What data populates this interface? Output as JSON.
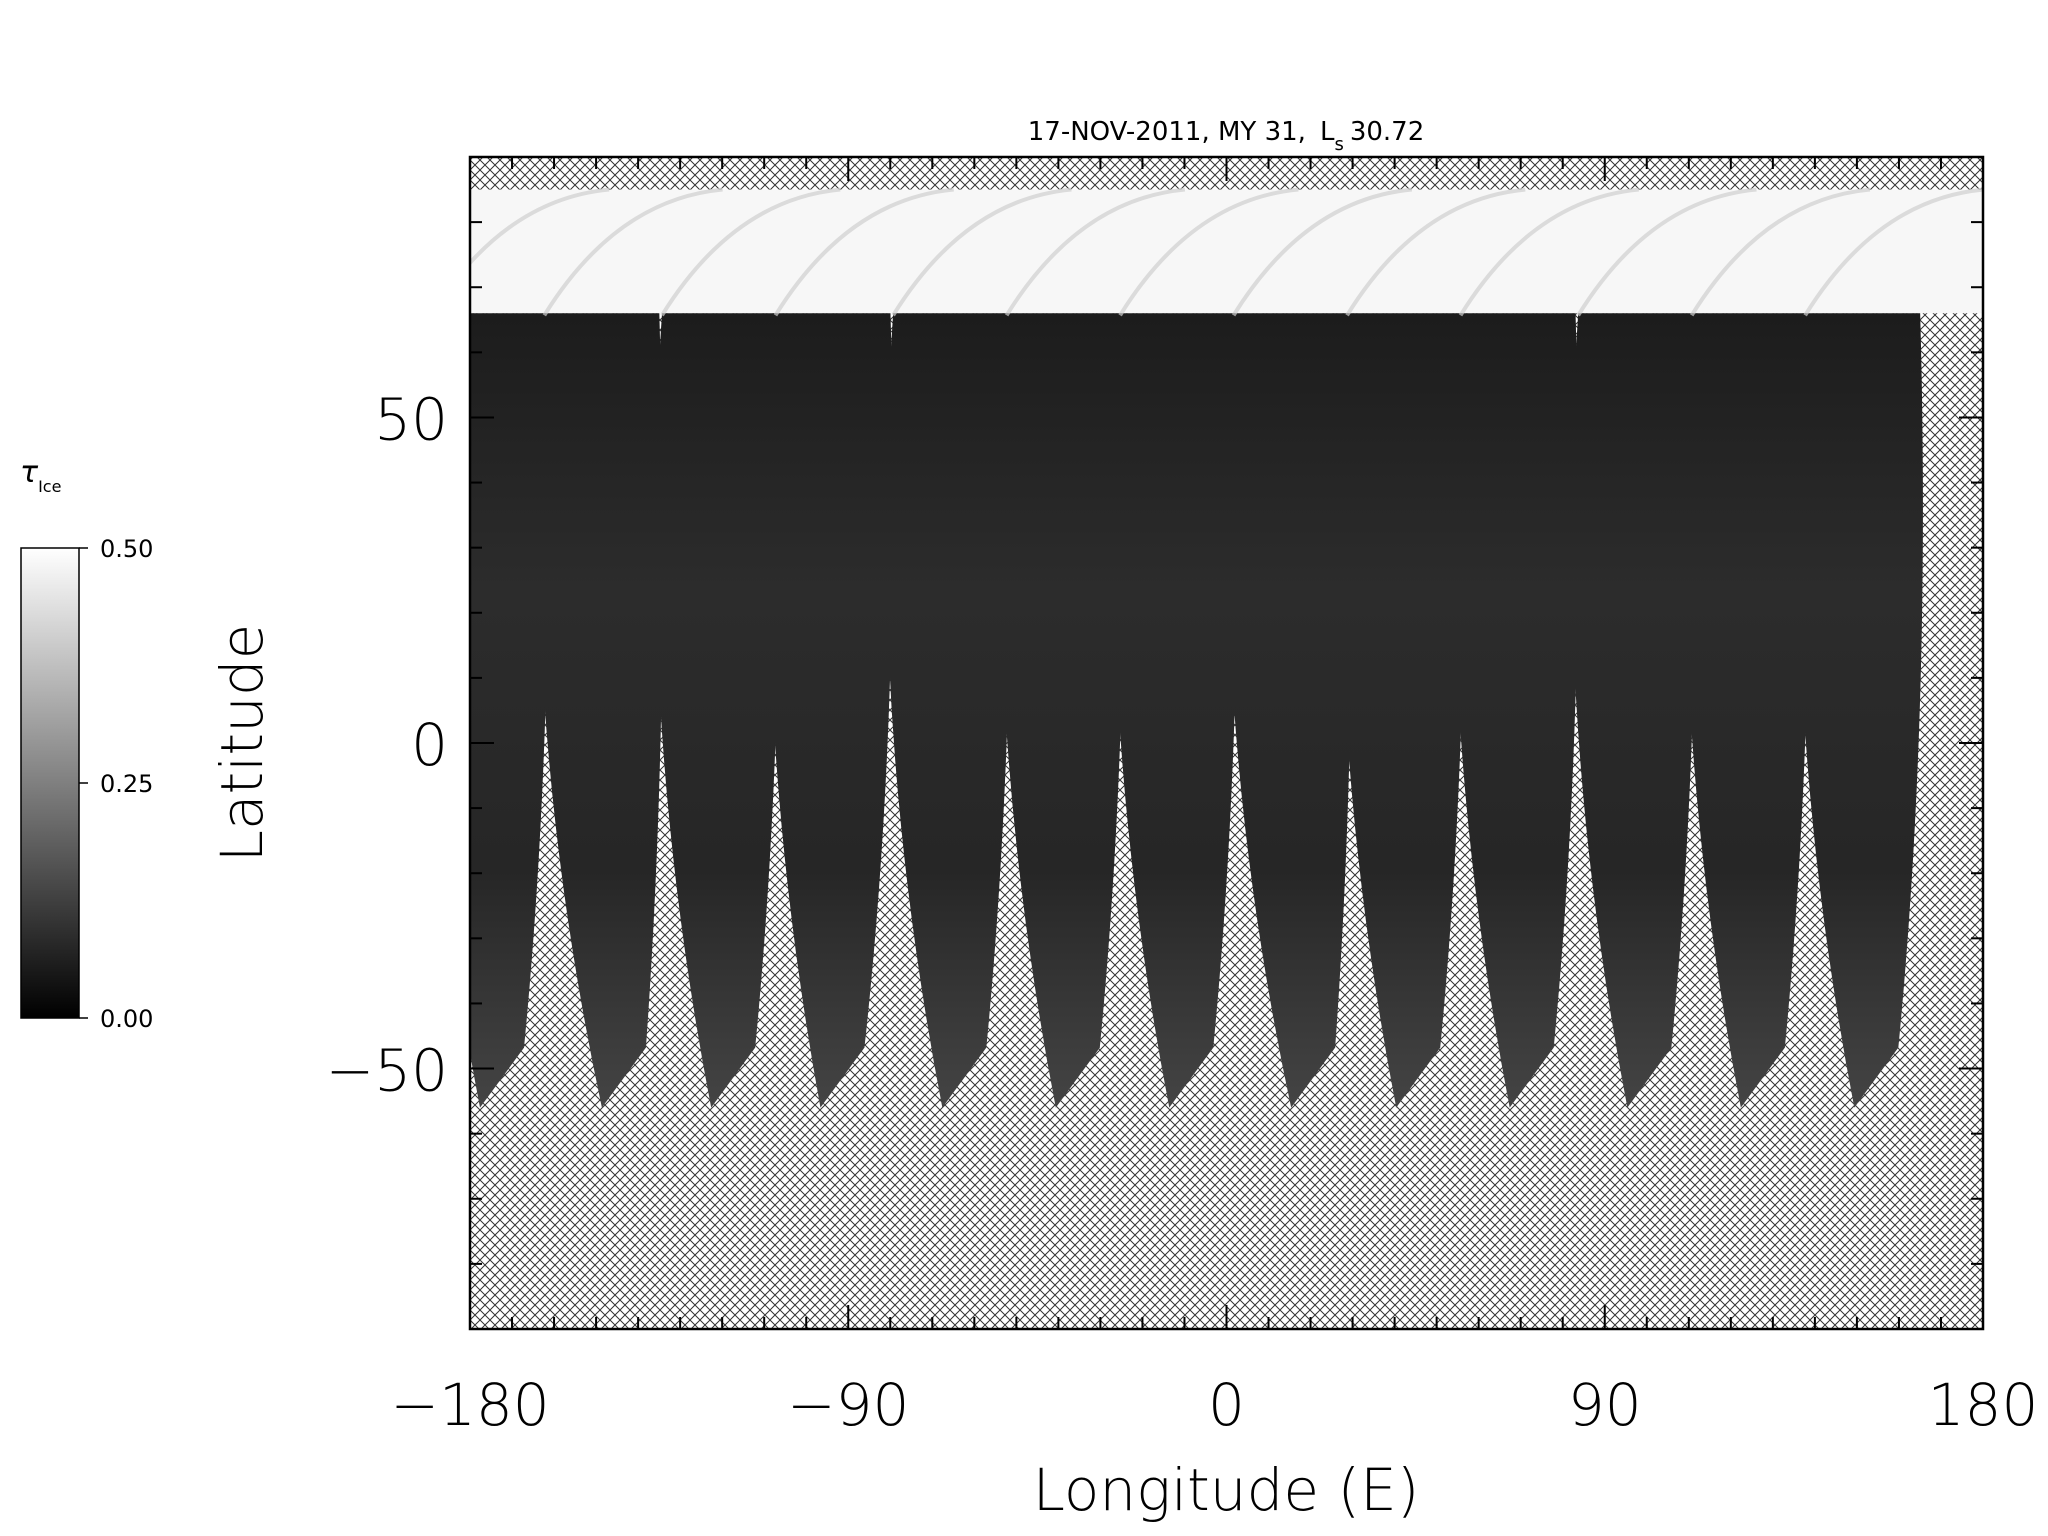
{
  "chart_data": {
    "type": "heatmap",
    "title_parts": {
      "prefix": "17-NOV-2011, MY 31,",
      "ls_symbol": "L",
      "ls_subscript": "s",
      "ls_value": "30.72"
    },
    "xlabel": "Longitude (E)",
    "ylabel": "Latitude",
    "xlim": [
      -180,
      180
    ],
    "ylim": [
      -90,
      90
    ],
    "x_ticks": [
      {
        "value": -180,
        "label": "−180"
      },
      {
        "value": -90,
        "label": "−90"
      },
      {
        "value": 0,
        "label": "0"
      },
      {
        "value": 90,
        "label": "90"
      },
      {
        "value": 180,
        "label": "180"
      }
    ],
    "y_ticks": [
      {
        "value": 50,
        "label": "50"
      },
      {
        "value": 0,
        "label": "0"
      },
      {
        "value": -50,
        "label": "−50"
      }
    ],
    "x_minor_step": 10,
    "y_minor_step": 10,
    "grid": false,
    "no_data_pattern": "crosshatch",
    "polar_cap": {
      "lat_min": 66,
      "lat_max": 85,
      "value": 0.5
    },
    "swaths": {
      "count": 13,
      "top_longitudes": [
        -177,
        -150,
        -122,
        -95,
        -67,
        -40,
        -13,
        14,
        41,
        68,
        96,
        123,
        150
      ],
      "bottom_longitudes": [
        -175,
        -146,
        -120,
        -94,
        -65,
        -38,
        -11,
        18,
        43,
        70,
        98,
        125,
        152
      ],
      "lat_top": 66,
      "lat_bottom": -56,
      "typical_value": 0.08
    },
    "colorbar": {
      "label_symbol": "τ",
      "label_subscript": "Ice",
      "min": 0.0,
      "max": 0.5,
      "colormap": "grayscale",
      "ticks": [
        {
          "value": 0.5,
          "label": "0.50"
        },
        {
          "value": 0.25,
          "label": "0.25"
        },
        {
          "value": 0.0,
          "label": "0.00"
        }
      ]
    }
  }
}
